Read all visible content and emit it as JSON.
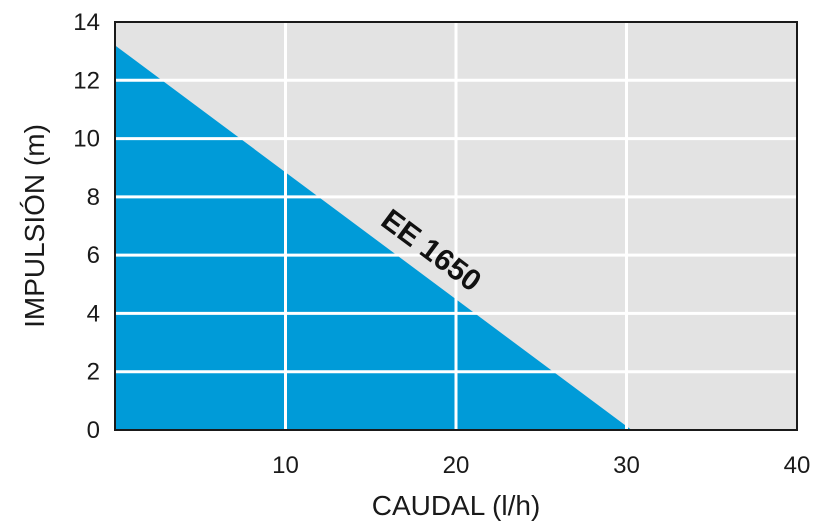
{
  "chart_data": {
    "type": "area",
    "xlabel": "CAUDAL (l/h)",
    "ylabel": "IMPULSIÓN (m)",
    "xlim": [
      0,
      40
    ],
    "ylim": [
      0,
      14
    ],
    "x_ticks": [
      10,
      20,
      30,
      40
    ],
    "y_ticks": [
      0,
      2,
      4,
      6,
      8,
      10,
      12,
      14
    ],
    "grid": true,
    "series": [
      {
        "name": "EE 1650",
        "x": [
          0,
          30.3
        ],
        "y": [
          13.2,
          0
        ]
      }
    ],
    "colors": {
      "fill": "#009bd8",
      "background": "#e3e3e3",
      "grid": "#ffffff",
      "frame": "#1a1a1a"
    }
  }
}
